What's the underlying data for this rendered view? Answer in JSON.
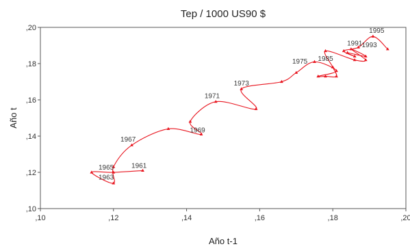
{
  "chart_data": {
    "type": "line",
    "title": "Tep / 1000 US90 $",
    "xlabel": "Año t-1",
    "ylabel": "Año t",
    "xlim": [
      0.1,
      0.2
    ],
    "ylim": [
      0.1,
      0.2
    ],
    "x_ticks": [
      ",10",
      ",12",
      ",14",
      ",16",
      ",18",
      ",20"
    ],
    "y_ticks": [
      ",10",
      ",12",
      ",14",
      ",16",
      ",18",
      ",20"
    ],
    "x_tick_values": [
      0.1,
      0.12,
      0.14,
      0.16,
      0.18,
      0.2
    ],
    "y_tick_values": [
      0.1,
      0.12,
      0.14,
      0.16,
      0.18,
      0.2
    ],
    "grid": false,
    "series_color": "#e8141e",
    "series": [
      {
        "points": [
          {
            "x": 0.128,
            "y": 0.121
          },
          {
            "x": 0.12,
            "y": 0.12
          },
          {
            "x": 0.114,
            "y": 0.12
          },
          {
            "x": 0.12,
            "y": 0.114
          },
          {
            "x": 0.12,
            "y": 0.123
          },
          {
            "x": 0.125,
            "y": 0.135
          },
          {
            "x": 0.135,
            "y": 0.144
          },
          {
            "x": 0.144,
            "y": 0.141
          },
          {
            "x": 0.141,
            "y": 0.148
          },
          {
            "x": 0.148,
            "y": 0.159
          },
          {
            "x": 0.159,
            "y": 0.155
          },
          {
            "x": 0.155,
            "y": 0.166
          },
          {
            "x": 0.166,
            "y": 0.17
          },
          {
            "x": 0.17,
            "y": 0.175
          },
          {
            "x": 0.175,
            "y": 0.181
          },
          {
            "x": 0.181,
            "y": 0.176
          },
          {
            "x": 0.176,
            "y": 0.173
          },
          {
            "x": 0.178,
            "y": 0.173
          },
          {
            "x": 0.181,
            "y": 0.173
          },
          {
            "x": 0.18,
            "y": 0.178
          },
          {
            "x": 0.178,
            "y": 0.187
          },
          {
            "x": 0.186,
            "y": 0.182
          },
          {
            "x": 0.189,
            "y": 0.182
          },
          {
            "x": 0.185,
            "y": 0.188
          },
          {
            "x": 0.189,
            "y": 0.184
          },
          {
            "x": 0.184,
            "y": 0.186
          },
          {
            "x": 0.186,
            "y": 0.184
          },
          {
            "x": 0.183,
            "y": 0.187
          },
          {
            "x": 0.187,
            "y": 0.189
          },
          {
            "x": 0.191,
            "y": 0.195
          },
          {
            "x": 0.195,
            "y": 0.188
          }
        ]
      }
    ],
    "annotations": [
      {
        "text": "1961",
        "x": 0.127,
        "y": 0.1225
      },
      {
        "text": "1965",
        "x": 0.118,
        "y": 0.1215
      },
      {
        "text": "1963",
        "x": 0.118,
        "y": 0.116
      },
      {
        "text": "1967",
        "x": 0.124,
        "y": 0.137
      },
      {
        "text": "1969",
        "x": 0.143,
        "y": 0.142
      },
      {
        "text": "1971",
        "x": 0.147,
        "y": 0.161
      },
      {
        "text": "1973",
        "x": 0.155,
        "y": 0.168
      },
      {
        "text": "1975",
        "x": 0.171,
        "y": 0.18
      },
      {
        "text": "1985",
        "x": 0.178,
        "y": 0.1815
      },
      {
        "text": "1991",
        "x": 0.186,
        "y": 0.19
      },
      {
        "text": "1993",
        "x": 0.19,
        "y": 0.189
      },
      {
        "text": "1995",
        "x": 0.192,
        "y": 0.197
      }
    ]
  }
}
